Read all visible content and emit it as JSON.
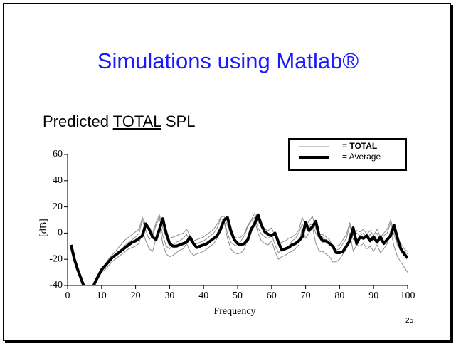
{
  "slide": {
    "title": "Simulations using Matlab®",
    "subtitle": [
      "Predicted",
      "TOTAL",
      "SPL"
    ],
    "page_number": "25"
  },
  "chart_data": {
    "type": "line",
    "xlabel": "Frequency",
    "ylabel": "[dB]",
    "xlim": [
      0,
      100
    ],
    "ylim": [
      -40,
      60
    ],
    "xticks": [
      0,
      10,
      20,
      30,
      40,
      50,
      60,
      70,
      80,
      90,
      100
    ],
    "yticks": [
      -40,
      -20,
      0,
      20,
      40,
      60
    ],
    "legend": "upper right",
    "x": [
      1,
      2,
      3,
      4,
      5,
      6,
      7,
      8,
      9,
      10,
      11,
      12,
      13,
      14,
      15,
      16,
      17,
      18,
      19,
      20,
      21,
      22,
      23,
      24,
      25,
      26,
      27,
      28,
      29,
      30,
      31,
      32,
      33,
      34,
      35,
      36,
      37,
      38,
      39,
      40,
      41,
      42,
      43,
      44,
      45,
      46,
      47,
      48,
      49,
      50,
      51,
      52,
      53,
      54,
      55,
      56,
      57,
      58,
      59,
      60,
      61,
      62,
      63,
      64,
      65,
      66,
      67,
      68,
      69,
      70,
      71,
      72,
      73,
      74,
      75,
      76,
      77,
      78,
      79,
      80,
      81,
      82,
      83,
      84,
      85,
      86,
      87,
      88,
      89,
      90,
      91,
      92,
      93,
      94,
      95,
      96,
      97,
      98,
      99,
      100
    ],
    "series": [
      {
        "name": "= TOTAL",
        "color": "#8c8c8c",
        "line_width": 1,
        "values": [
          null,
          null,
          null,
          null,
          null,
          null,
          null,
          null,
          null,
          -27,
          -24,
          -20,
          -17,
          -14,
          -11,
          -8,
          -5,
          -3,
          -1,
          1,
          3,
          12,
          6,
          2,
          0,
          8,
          14,
          4,
          -3,
          -4,
          -3,
          -2,
          -1,
          0,
          3,
          -2,
          -6,
          -5,
          -4,
          -3,
          -1,
          1,
          3,
          7,
          12,
          13,
          6,
          -1,
          -3,
          -4,
          -3,
          0,
          6,
          10,
          15,
          9,
          5,
          3,
          2,
          4,
          -2,
          -8,
          -7,
          -6,
          -4,
          -3,
          -1,
          2,
          12,
          6,
          9,
          13,
          3,
          -1,
          -1,
          -3,
          -5,
          -10,
          -10,
          -9,
          -5,
          -1,
          8,
          -2,
          2,
          1,
          3,
          -1,
          2,
          -2,
          3,
          -3,
          0,
          3,
          10,
          2,
          -6,
          -8,
          -12,
          -14
        ]
      },
      {
        "name": "= TOTAL",
        "color": "#8c8c8c",
        "line_width": 1,
        "values": [
          null,
          null,
          null,
          null,
          null,
          null,
          null,
          null,
          null,
          -30,
          -28,
          -25,
          -22,
          -20,
          -18,
          -16,
          -14,
          -12,
          -11,
          -10,
          -8,
          2,
          -6,
          -12,
          -14,
          -4,
          6,
          -8,
          -16,
          -18,
          -17,
          -15,
          -13,
          -12,
          -8,
          -14,
          -17,
          -16,
          -15,
          -14,
          -12,
          -10,
          -8,
          -4,
          6,
          9,
          -4,
          -12,
          -15,
          -16,
          -15,
          -12,
          -4,
          2,
          10,
          0,
          -6,
          -8,
          -9,
          -6,
          -14,
          -20,
          -18,
          -17,
          -15,
          -14,
          -12,
          -9,
          4,
          -4,
          0,
          5,
          -8,
          -14,
          -14,
          -16,
          -18,
          -22,
          -22,
          -20,
          -16,
          -12,
          0,
          -14,
          -9,
          -10,
          -8,
          -12,
          -10,
          -14,
          -9,
          -15,
          -12,
          -8,
          2,
          -10,
          -18,
          -22,
          -26,
          -30
        ]
      },
      {
        "name": "= TOTAL",
        "color": "#8c8c8c",
        "line_width": 1,
        "values": [
          null,
          null,
          null,
          null,
          null,
          null,
          null,
          null,
          null,
          -29,
          -26,
          -23,
          -19,
          -16,
          -14,
          -12,
          -9,
          -7,
          -5,
          -3,
          0,
          10,
          2,
          -5,
          -2,
          6,
          12,
          -2,
          -10,
          -12,
          -9,
          -7,
          -6,
          -4,
          -1,
          -6,
          -9,
          -8,
          -7,
          -6,
          -4,
          -2,
          0,
          4,
          11,
          10,
          0,
          -7,
          -9,
          -10,
          -6,
          -2,
          5,
          9,
          12,
          4,
          -1,
          -3,
          -4,
          -1,
          -9,
          -15,
          -13,
          -12,
          -10,
          -6,
          -4,
          0,
          7,
          3,
          6,
          7,
          0,
          -4,
          -3,
          -6,
          -8,
          -12,
          -13,
          -12,
          -8,
          -4,
          6,
          -5,
          0,
          -2,
          0,
          -4,
          -1,
          -5,
          0,
          -6,
          -2,
          0,
          8,
          -1,
          -9,
          -12,
          -14,
          -16
        ]
      },
      {
        "name": "= Average",
        "color": "#000000",
        "line_width": 4,
        "values": [
          -9,
          -20,
          -28,
          -35,
          -42,
          -50,
          -45,
          -38,
          -33,
          -28,
          -25,
          -22,
          -19,
          -17,
          -15,
          -13,
          -11,
          -9,
          -7,
          -6,
          -4,
          -2,
          7,
          3,
          -3,
          -5,
          3,
          11,
          0,
          -8,
          -10,
          -10,
          -9,
          -8,
          -7,
          -3,
          -8,
          -11,
          -10,
          -9,
          -8,
          -6,
          -4,
          -2,
          3,
          10,
          12,
          2,
          -5,
          -8,
          -9,
          -8,
          -5,
          3,
          7,
          14,
          6,
          1,
          -1,
          -2,
          0,
          -7,
          -13,
          -12,
          -11,
          -9,
          -8,
          -6,
          -3,
          8,
          2,
          5,
          9,
          -2,
          -6,
          -6,
          -8,
          -10,
          -15,
          -15,
          -14,
          -10,
          -6,
          4,
          -8,
          -3,
          -4,
          -2,
          -6,
          -3,
          -7,
          -3,
          -8,
          -5,
          -2,
          6,
          -4,
          -12,
          -16,
          -19
        ]
      }
    ]
  }
}
